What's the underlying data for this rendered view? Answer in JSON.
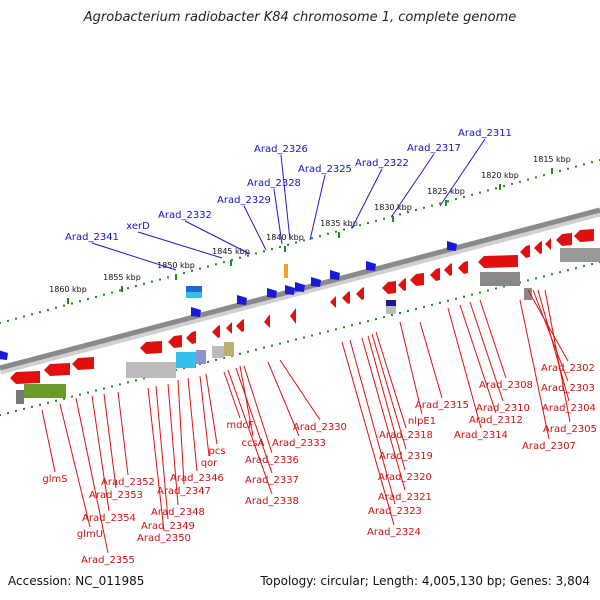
{
  "title": "Agrobacterium radiobacter K84 chromosome 1, complete genome",
  "accession": "Accession: NC_011985",
  "summary": "Topology: circular; Length: 4,005,130 bp; Genes: 3,804",
  "colors": {
    "forward_gene": "#1a1ad6",
    "reverse_gene": "#e01010",
    "backbone": "#8a8a8a",
    "tick": "#1f8a1f",
    "special_gene": "#f0a020"
  },
  "ruler_ticks": [
    "1815 kbp",
    "1820 kbp",
    "1825 kbp",
    "1830 kbp",
    "1835 kbp",
    "1840 kbp",
    "1845 kbp",
    "1850 kbp",
    "1855 kbp",
    "1860 kbp"
  ],
  "top_labels": [
    "Arad_2311",
    "Arad_2317",
    "Arad_2322",
    "Arad_2325",
    "Arad_2326",
    "Arad_2328",
    "Arad_2329",
    "Arad_2332",
    "xerD",
    "Arad_2341"
  ],
  "bottom_labels": [
    "Arad_2302",
    "Arad_2303",
    "Arad_2304",
    "Arad_2305",
    "Arad_2307",
    "Arad_2308",
    "Arad_2310",
    "Arad_2312",
    "Arad_2314",
    "Arad_2315",
    "nlpE1",
    "Arad_2318",
    "Arad_2319",
    "Arad_2320",
    "Arad_2321",
    "Arad_2323",
    "Arad_2324",
    "Arad_2330",
    "Arad_2333",
    "ccsA",
    "mdcF",
    "Arad_2336",
    "Arad_2337",
    "Arad_2338",
    "pcs",
    "qor",
    "Arad_2346",
    "Arad_2347",
    "Arad_2348",
    "Arad_2349",
    "Arad_2350",
    "Arad_2352",
    "Arad_2353",
    "Arad_2354",
    "Arad_2355",
    "glmS",
    "glmU"
  ]
}
